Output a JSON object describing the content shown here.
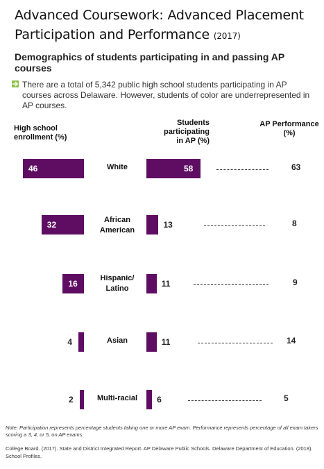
{
  "title": {
    "main": "Advanced Coursework: Advanced Placement Participation and Performance",
    "year": "(2017)"
  },
  "subtitle": "Demographics of students participating in and passing AP courses",
  "bullet_text": "There are a total of 5,342 public high school students participating in AP courses across Delaware. However, students of color are underrepresented in AP courses.",
  "colors": {
    "bar": "#5e0d63",
    "bullet_accent": "#8bc34a"
  },
  "headers": {
    "enrollment": "High school enrollment (%)",
    "participating": "Students participating in AP (%)",
    "performance": "AP Performance (%)"
  },
  "chart_data": {
    "type": "bar",
    "categories": [
      "White",
      "African American",
      "Hispanic/ Latino",
      "Asian",
      "Multi-racial"
    ],
    "series": [
      {
        "name": "High school enrollment (%)",
        "values": [
          46,
          32,
          16,
          4,
          2
        ]
      },
      {
        "name": "Students participating in AP (%)",
        "values": [
          58,
          13,
          11,
          11,
          6
        ]
      },
      {
        "name": "AP Performance (%)",
        "values": [
          63,
          8,
          9,
          14,
          5
        ]
      }
    ]
  },
  "footnote": "Note: Participation represents percentage students taking one or more AP exam. Performance represents percentage of all exam takers scoring a 3, 4, or 5, on AP exams.",
  "source": "College Board. (2017). State and District Integrated Report. AP Delaware Public Schools. Delaware Department of Education. (2018). School Profiles."
}
